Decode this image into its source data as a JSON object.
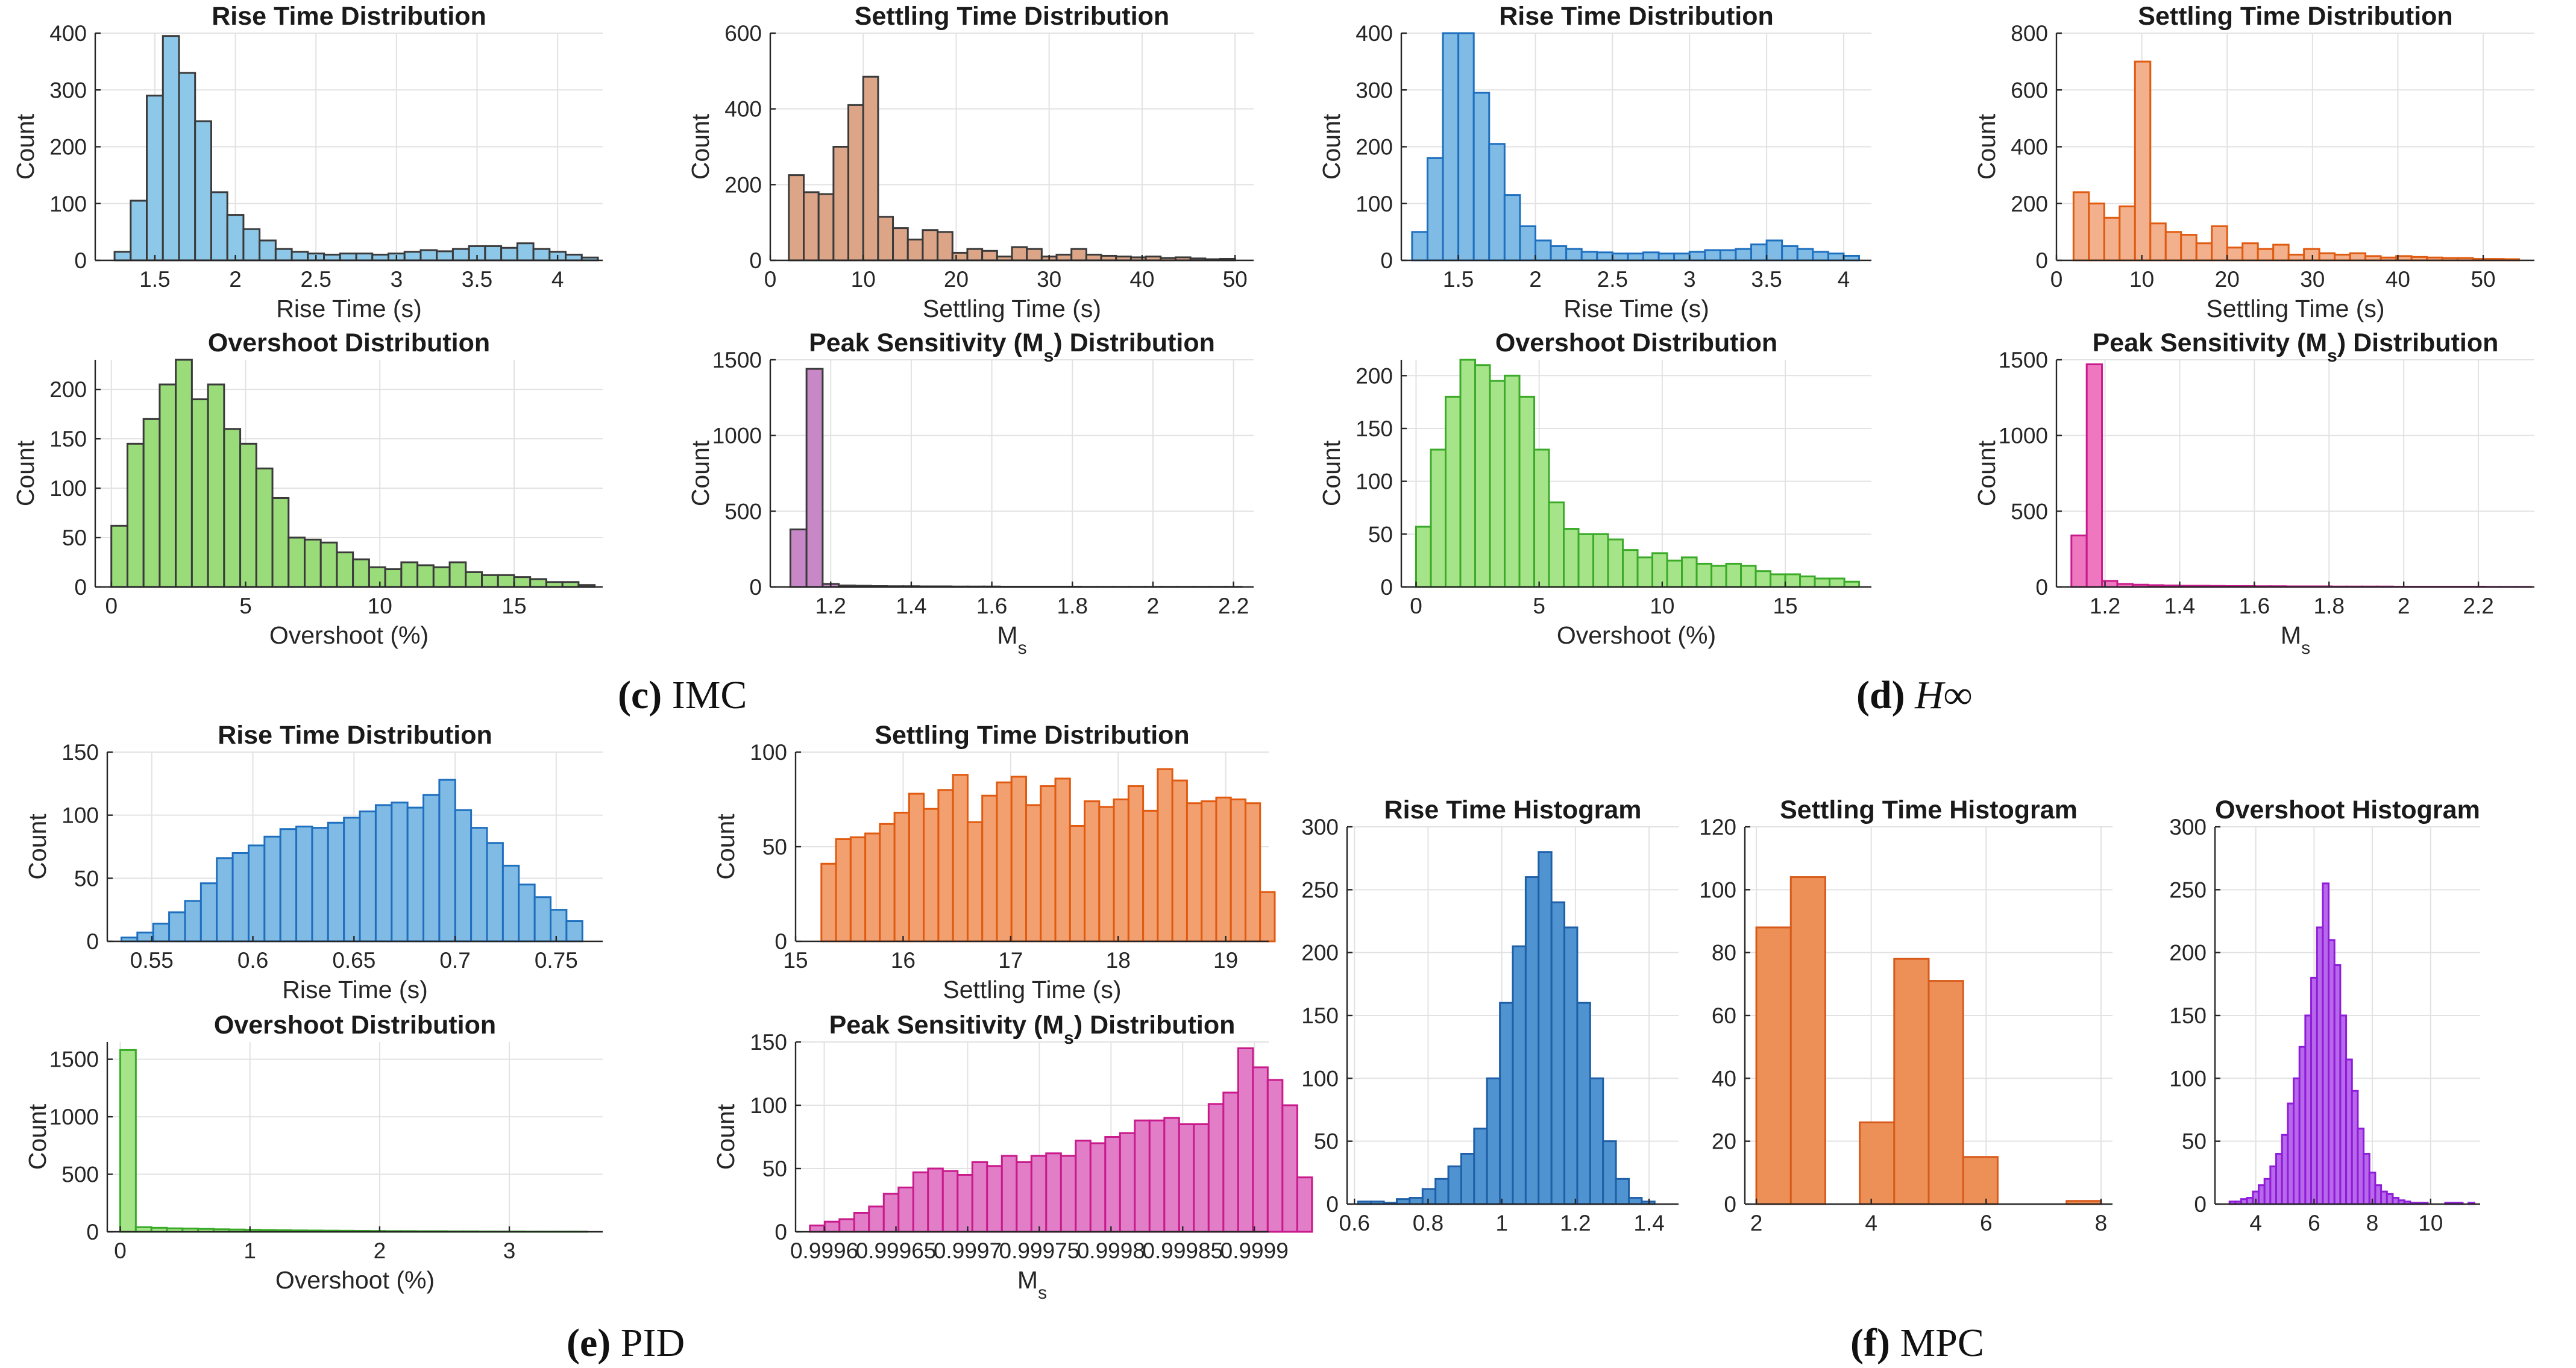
{
  "panel_captions": [
    {
      "letter": "(c)",
      "text": "IMC"
    },
    {
      "letter": "(d)",
      "text": "H∞"
    },
    {
      "letter": "(e)",
      "text": "PID"
    },
    {
      "letter": "(f)",
      "text": "MPC"
    }
  ],
  "chart_data": [
    {
      "id": "c1",
      "type": "bar",
      "title": "Rise Time Distribution",
      "xlabel": "Rise Time (s)",
      "ylabel": "Count",
      "color": "#8ec8e8",
      "edge": "#3a3a3a",
      "xlim": [
        1.13,
        4.28
      ],
      "ylim": [
        0,
        400
      ],
      "xticks": [
        1.5,
        2,
        2.5,
        3,
        3.5,
        4
      ],
      "xticklabels": [
        "1.5",
        "2",
        "2.5",
        "3",
        "3.5",
        "4"
      ],
      "yticks": [
        0,
        100,
        200,
        300,
        400
      ],
      "yticklabels": [
        "0",
        "100",
        "200",
        "300",
        "400"
      ],
      "binStart": 1.25,
      "binWidth": 0.1,
      "values": [
        15,
        105,
        290,
        395,
        330,
        245,
        120,
        80,
        55,
        35,
        20,
        15,
        12,
        10,
        12,
        12,
        10,
        12,
        15,
        18,
        16,
        20,
        25,
        25,
        22,
        30,
        20,
        15,
        10,
        5
      ]
    },
    {
      "id": "c2",
      "type": "bar",
      "title": "Settling Time Distribution",
      "xlabel": "Settling Time (s)",
      "ylabel": "Count",
      "color": "#dca588",
      "edge": "#3a3a3a",
      "xlim": [
        0,
        52
      ],
      "ylim": [
        0,
        600
      ],
      "xticks": [
        0,
        10,
        20,
        30,
        40,
        50
      ],
      "xticklabels": [
        "0",
        "10",
        "20",
        "30",
        "40",
        "50"
      ],
      "yticks": [
        0,
        200,
        400,
        600
      ],
      "yticklabels": [
        "0",
        "200",
        "400",
        "600"
      ],
      "binStart": 2,
      "binWidth": 1.6,
      "values": [
        225,
        180,
        175,
        300,
        410,
        485,
        115,
        85,
        55,
        80,
        75,
        20,
        30,
        25,
        10,
        35,
        30,
        10,
        15,
        30,
        15,
        12,
        10,
        8,
        10,
        6,
        8,
        5,
        3,
        4
      ]
    },
    {
      "id": "c3",
      "type": "bar",
      "title": "Overshoot Distribution",
      "xlabel": "Overshoot (%)",
      "ylabel": "Count",
      "color": "#9adb7a",
      "edge": "#3a3a3a",
      "xlim": [
        -0.6,
        18.3
      ],
      "ylim": [
        0,
        230
      ],
      "xticks": [
        0,
        5,
        10,
        15
      ],
      "xticklabels": [
        "0",
        "5",
        "10",
        "15"
      ],
      "yticks": [
        0,
        50,
        100,
        150,
        200
      ],
      "yticklabels": [
        "0",
        "50",
        "100",
        "150",
        "200"
      ],
      "binStart": 0,
      "binWidth": 0.6,
      "values": [
        62,
        145,
        170,
        205,
        232,
        190,
        205,
        160,
        145,
        120,
        90,
        50,
        48,
        45,
        35,
        28,
        20,
        18,
        25,
        22,
        20,
        25,
        15,
        12,
        12,
        10,
        8,
        5,
        5,
        2
      ]
    },
    {
      "id": "c4",
      "type": "bar",
      "title": "Peak Sensitivity (Ms) Distribution",
      "xlabel": "Ms",
      "ylabel": "Count",
      "color": "#c888c8",
      "edge": "#3a3a3a",
      "xlim": [
        1.05,
        2.25
      ],
      "ylim": [
        0,
        1500
      ],
      "xticks": [
        1.2,
        1.4,
        1.6,
        1.8,
        2,
        2.2
      ],
      "xticklabels": [
        "1.2",
        "1.4",
        "1.6",
        "1.8",
        "2",
        "2.2"
      ],
      "yticks": [
        0,
        500,
        1000,
        1500
      ],
      "yticklabels": [
        "0",
        "500",
        "1000",
        "1500"
      ],
      "binStart": 1.1,
      "binWidth": 0.04,
      "values": [
        380,
        1440,
        20,
        10,
        8,
        6,
        5,
        5,
        4,
        4,
        3,
        3,
        3,
        2,
        2,
        2,
        2,
        2,
        1,
        1,
        1,
        1,
        1,
        1,
        1,
        1,
        1,
        1
      ]
    },
    {
      "id": "d1",
      "type": "bar",
      "title": "Rise Time Distribution",
      "xlabel": "Rise Time (s)",
      "ylabel": "Count",
      "color": "#7fbbe5",
      "edge": "#1f6fbf",
      "xlim": [
        1.13,
        4.18
      ],
      "ylim": [
        0,
        400
      ],
      "xticks": [
        1.5,
        2,
        2.5,
        3,
        3.5,
        4
      ],
      "xticklabels": [
        "1.5",
        "2",
        "2.5",
        "3",
        "3.5",
        "4"
      ],
      "yticks": [
        0,
        100,
        200,
        300,
        400
      ],
      "yticklabels": [
        "0",
        "100",
        "200",
        "300",
        "400"
      ],
      "binStart": 1.2,
      "binWidth": 0.1,
      "values": [
        50,
        180,
        400,
        400,
        295,
        205,
        115,
        60,
        35,
        25,
        20,
        15,
        14,
        12,
        12,
        14,
        12,
        12,
        15,
        18,
        18,
        20,
        28,
        35,
        25,
        20,
        15,
        12,
        8
      ]
    },
    {
      "id": "d2",
      "type": "bar",
      "title": "Settling Time Distribution",
      "xlabel": "Settling Time (s)",
      "ylabel": "Count",
      "color": "#f2b08c",
      "edge": "#e05a10",
      "xlim": [
        0,
        56
      ],
      "ylim": [
        0,
        800
      ],
      "xticks": [
        0,
        10,
        20,
        30,
        40,
        50
      ],
      "xticklabels": [
        "0",
        "10",
        "20",
        "30",
        "40",
        "50"
      ],
      "yticks": [
        0,
        200,
        400,
        600,
        800
      ],
      "yticklabels": [
        "0",
        "200",
        "400",
        "600",
        "800"
      ],
      "binStart": 2,
      "binWidth": 1.8,
      "values": [
        240,
        200,
        150,
        190,
        700,
        130,
        100,
        90,
        60,
        120,
        45,
        60,
        40,
        55,
        20,
        40,
        25,
        20,
        25,
        15,
        10,
        15,
        12,
        10,
        8,
        8,
        5,
        5,
        4
      ]
    },
    {
      "id": "d3",
      "type": "bar",
      "title": "Overshoot Distribution",
      "xlabel": "Overshoot (%)",
      "ylabel": "Count",
      "color": "#a6e48a",
      "edge": "#3aaa28",
      "xlim": [
        -0.6,
        18.5
      ],
      "ylim": [
        0,
        215
      ],
      "xticks": [
        0,
        5,
        10,
        15
      ],
      "xticklabels": [
        "0",
        "5",
        "10",
        "15"
      ],
      "yticks": [
        0,
        50,
        100,
        150,
        200
      ],
      "yticklabels": [
        "0",
        "50",
        "100",
        "150",
        "200"
      ],
      "binStart": 0,
      "binWidth": 0.6,
      "values": [
        57,
        130,
        180,
        220,
        210,
        195,
        200,
        180,
        130,
        80,
        55,
        50,
        50,
        45,
        35,
        28,
        32,
        25,
        28,
        22,
        20,
        22,
        20,
        15,
        12,
        12,
        10,
        8,
        8,
        5
      ]
    },
    {
      "id": "d4",
      "type": "bar",
      "title": "Peak Sensitivity (Ms) Distribution",
      "xlabel": "Ms",
      "ylabel": "Count",
      "color": "#ee77c0",
      "edge": "#c81a8a",
      "xlim": [
        1.07,
        2.35
      ],
      "ylim": [
        0,
        1500
      ],
      "xticks": [
        1.2,
        1.4,
        1.6,
        1.8,
        2,
        2.2
      ],
      "xticklabels": [
        "1.2",
        "1.4",
        "1.6",
        "1.8",
        "2",
        "2.2"
      ],
      "yticks": [
        0,
        500,
        1000,
        1500
      ],
      "yticklabels": [
        "0",
        "500",
        "1000",
        "1500"
      ],
      "binStart": 1.11,
      "binWidth": 0.041,
      "values": [
        340,
        1470,
        40,
        20,
        15,
        12,
        10,
        8,
        8,
        7,
        6,
        6,
        5,
        5,
        4,
        4,
        4,
        3,
        3,
        3,
        3,
        2,
        2,
        2,
        2,
        2,
        2,
        1,
        1,
        1
      ]
    },
    {
      "id": "e1",
      "type": "bar",
      "title": "Rise Time Distribution",
      "xlabel": "Rise Time (s)",
      "ylabel": "Count",
      "color": "#7fbbe5",
      "edge": "#1f6fbf",
      "xlim": [
        0.528,
        0.773
      ],
      "ylim": [
        0,
        150
      ],
      "xticks": [
        0.55,
        0.6,
        0.65,
        0.7,
        0.75
      ],
      "xticklabels": [
        "0.55",
        "0.6",
        "0.65",
        "0.7",
        "0.75"
      ],
      "yticks": [
        0,
        50,
        100,
        150
      ],
      "yticklabels": [
        "0",
        "50",
        "100",
        "150"
      ],
      "binStart": 0.535,
      "binWidth": 0.00786,
      "values": [
        3,
        7,
        14,
        23,
        32,
        46,
        66,
        70,
        76,
        83,
        89,
        91,
        90,
        94,
        98,
        103,
        108,
        110,
        106,
        116,
        128,
        104,
        90,
        78,
        60,
        45,
        35,
        25,
        16
      ]
    },
    {
      "id": "e2",
      "type": "bar",
      "title": "Settling Time Distribution",
      "xlabel": "Settling Time (s)",
      "ylabel": "Count",
      "color": "#f2a070",
      "edge": "#e05a10",
      "xlim": [
        15,
        19.4
      ],
      "ylim": [
        0,
        100
      ],
      "xticks": [
        15,
        16,
        17,
        18,
        19
      ],
      "xticklabels": [
        "15",
        "16",
        "17",
        "18",
        "19"
      ],
      "yticks": [
        0,
        50,
        100
      ],
      "yticklabels": [
        "0",
        "50",
        "100"
      ],
      "binStart": 15.24,
      "binWidth": 0.136,
      "values": [
        41,
        54,
        55,
        57,
        62,
        68,
        78,
        70,
        80,
        88,
        63,
        77,
        84,
        87,
        72,
        82,
        86,
        61,
        74,
        71,
        75,
        82,
        69,
        91,
        85,
        73,
        74,
        76,
        75,
        73,
        26
      ]
    },
    {
      "id": "e3",
      "type": "bar",
      "title": "Overshoot Distribution",
      "xlabel": "Overshoot (%)",
      "ylabel": "Count",
      "color": "#a6e48a",
      "edge": "#3aaa28",
      "xlim": [
        -0.1,
        3.72
      ],
      "ylim": [
        0,
        1650
      ],
      "xticks": [
        0,
        1,
        2,
        3
      ],
      "xticklabels": [
        "0",
        "1",
        "2",
        "3"
      ],
      "yticks": [
        0,
        500,
        1000,
        1500
      ],
      "yticklabels": [
        "0",
        "500",
        "1000",
        "1500"
      ],
      "binStart": 0,
      "binWidth": 0.12,
      "values": [
        1580,
        40,
        35,
        30,
        28,
        25,
        22,
        20,
        18,
        16,
        14,
        12,
        11,
        10,
        9,
        8,
        7,
        6,
        6,
        5,
        5,
        4,
        4,
        3,
        3,
        3,
        2,
        2,
        2,
        2
      ]
    },
    {
      "id": "e4",
      "type": "bar",
      "title": "Peak Sensitivity (Ms) Distribution",
      "xlabel": "Ms",
      "ylabel": "Count",
      "color": "#e27ec8",
      "edge": "#c81a8a",
      "xlim": [
        0.99958,
        0.99991
      ],
      "ylim": [
        0,
        150
      ],
      "xticks": [
        0.9996,
        0.99965,
        0.9997,
        0.99975,
        0.9998,
        0.99985,
        0.9999
      ],
      "xticklabels": [
        "0.9996",
        "0.99965",
        "0.9997",
        "0.99975",
        "0.9998",
        "0.99985",
        "0.9999"
      ],
      "yticks": [
        0,
        50,
        100,
        150
      ],
      "yticklabels": [
        "0",
        "50",
        "100",
        "150"
      ],
      "binStart": 0.99959,
      "binWidth": 1.03e-05,
      "values": [
        5,
        8,
        10,
        15,
        20,
        30,
        35,
        47,
        50,
        48,
        45,
        55,
        52,
        60,
        55,
        60,
        62,
        60,
        72,
        70,
        75,
        78,
        88,
        88,
        90,
        85,
        85,
        101,
        110,
        145,
        130,
        120,
        100,
        43
      ]
    },
    {
      "id": "f1",
      "type": "bar",
      "title": "Rise Time Histogram",
      "xlabel": "",
      "ylabel": "",
      "color": "#4f93d0",
      "edge": "#1f5fa8",
      "xlim": [
        0.58,
        1.48
      ],
      "ylim": [
        0,
        300
      ],
      "xticks": [
        0.6,
        0.8,
        1,
        1.2,
        1.4
      ],
      "xticklabels": [
        "0.6",
        "0.8",
        "1",
        "1.2",
        "1.4"
      ],
      "yticks": [
        0,
        50,
        100,
        150,
        200,
        250,
        300
      ],
      "yticklabels": [
        "0",
        "50",
        "100",
        "150",
        "200",
        "250",
        "300"
      ],
      "binStart": 0.61,
      "binWidth": 0.035,
      "values": [
        2,
        2,
        1,
        4,
        5,
        12,
        20,
        30,
        40,
        60,
        100,
        160,
        205,
        260,
        280,
        240,
        220,
        160,
        100,
        50,
        20,
        5,
        2
      ]
    },
    {
      "id": "f2",
      "type": "bar",
      "title": "Settling Time Histogram",
      "xlabel": "",
      "ylabel": "",
      "color": "#ec9058",
      "edge": "#d85a1a",
      "xlim": [
        1.8,
        8.2
      ],
      "ylim": [
        0,
        120
      ],
      "xticks": [
        2,
        4,
        6,
        8
      ],
      "xticklabels": [
        "2",
        "4",
        "6",
        "8"
      ],
      "yticks": [
        0,
        20,
        40,
        60,
        80,
        100,
        120
      ],
      "yticklabels": [
        "0",
        "20",
        "40",
        "60",
        "80",
        "100",
        "120"
      ],
      "binStart": 2,
      "binWidth": 0.6,
      "values": [
        88,
        104,
        0,
        26,
        78,
        71,
        15,
        0,
        0,
        1
      ]
    },
    {
      "id": "f3",
      "type": "bar",
      "title": "Overshoot Histogram",
      "xlabel": "",
      "ylabel": "",
      "color": "#b868ea",
      "edge": "#8e1cd8",
      "xlim": [
        2.6,
        11.7
      ],
      "ylim": [
        0,
        300
      ],
      "xticks": [
        4,
        6,
        8,
        10
      ],
      "xticklabels": [
        "4",
        "6",
        "8",
        "10"
      ],
      "yticks": [
        0,
        50,
        100,
        150,
        200,
        250,
        300
      ],
      "yticklabels": [
        "0",
        "50",
        "100",
        "150",
        "200",
        "250",
        "300"
      ],
      "binStart": 3.1,
      "binWidth": 0.2,
      "values": [
        2,
        2,
        4,
        5,
        10,
        15,
        20,
        30,
        40,
        55,
        80,
        100,
        125,
        150,
        180,
        220,
        255,
        210,
        190,
        150,
        115,
        90,
        60,
        40,
        25,
        15,
        10,
        8,
        5,
        3,
        2,
        1,
        1,
        1,
        0,
        0,
        0,
        1,
        1,
        1,
        0,
        1
      ]
    }
  ]
}
